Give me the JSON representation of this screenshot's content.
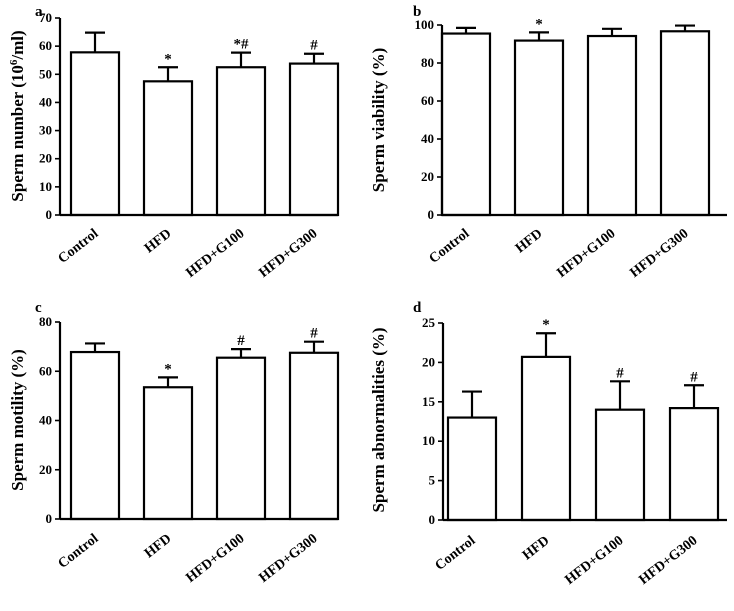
{
  "chart_data": [
    {
      "type": "bar",
      "panel": "a",
      "ylabel": "Sperm number (10^6/ml)",
      "ylabel_base": "Sperm number (10",
      "ylabel_sup": "6",
      "ylabel_tail": "/ml)",
      "categories": [
        "Control",
        "HFD",
        "HFD+G100",
        "HFD+G300"
      ],
      "values": [
        57.8,
        47.5,
        52.5,
        53.8
      ],
      "errors": [
        7.0,
        5.0,
        5.2,
        3.5
      ],
      "significance": [
        "",
        "*",
        "*#",
        "#"
      ],
      "ylim": [
        0,
        70
      ],
      "yticks": [
        0,
        10,
        20,
        30,
        40,
        50,
        60,
        70
      ]
    },
    {
      "type": "bar",
      "panel": "b",
      "ylabel": "Sperm viability (%)",
      "categories": [
        "Control",
        "HFD",
        "HFD+G100",
        "HFD+G300"
      ],
      "values": [
        95.5,
        91.8,
        94.2,
        96.7
      ],
      "errors": [
        3.0,
        4.3,
        3.8,
        3.0
      ],
      "significance": [
        "",
        "*",
        "",
        ""
      ],
      "ylim": [
        0,
        100
      ],
      "yticks": [
        0,
        20,
        40,
        60,
        80,
        100
      ]
    },
    {
      "type": "bar",
      "panel": "c",
      "ylabel": "Sperm motility (%)",
      "categories": [
        "Control",
        "HFD",
        "HFD+G100",
        "HFD+G300"
      ],
      "values": [
        67.8,
        53.5,
        65.5,
        67.5
      ],
      "errors": [
        3.5,
        4.0,
        3.5,
        4.5
      ],
      "significance": [
        "",
        "*",
        "#",
        "#"
      ],
      "ylim": [
        0,
        80
      ],
      "yticks": [
        0,
        20,
        40,
        60,
        80
      ]
    },
    {
      "type": "bar",
      "panel": "d",
      "ylabel": "Sperm  abnormalities (%)",
      "categories": [
        "Control",
        "HFD",
        "HFD+G100",
        "HFD+G300"
      ],
      "values": [
        13.0,
        20.7,
        14.0,
        14.2
      ],
      "errors": [
        3.3,
        3.0,
        3.6,
        2.9
      ],
      "significance": [
        "",
        "*",
        "#",
        "#"
      ],
      "ylim": [
        0,
        25
      ],
      "yticks": [
        0,
        5,
        10,
        15,
        20,
        25
      ]
    }
  ]
}
